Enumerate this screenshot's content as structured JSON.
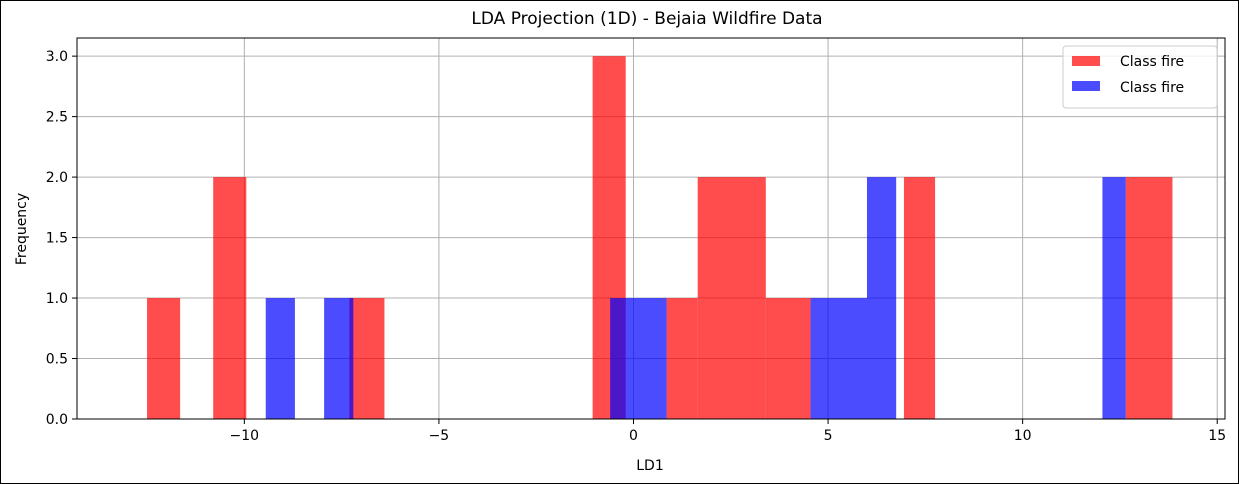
{
  "chart_data": {
    "type": "bar",
    "title": "LDA Projection (1D) - Bejaia Wildfire Data",
    "xlabel": "LD1",
    "ylabel": "Frequency",
    "xlim": [
      -14.3,
      15.2
    ],
    "ylim": [
      0,
      3.15
    ],
    "xticks": [
      -10,
      -5,
      0,
      5,
      10,
      15
    ],
    "xtick_labels": [
      "−10",
      "−5",
      "0",
      "5",
      "10",
      "15"
    ],
    "yticks": [
      0,
      0.5,
      1,
      1.5,
      2,
      2.5,
      3
    ],
    "ytick_labels": [
      "0.0",
      "0.5",
      "1.0",
      "1.5",
      "2.0",
      "2.5",
      "3.0"
    ],
    "grid": true,
    "legend_position": "upper-right",
    "series": [
      {
        "name": "Class fire",
        "color": "#ff0000",
        "alpha": 0.7,
        "bins": [
          {
            "x0": -12.5,
            "x1": -11.65,
            "count": 1
          },
          {
            "x0": -10.8,
            "x1": -9.95,
            "count": 2
          },
          {
            "x0": -7.3,
            "x1": -6.4,
            "count": 1
          },
          {
            "x0": -1.05,
            "x1": -0.2,
            "count": 3
          },
          {
            "x0": 0.85,
            "x1": 1.65,
            "count": 1
          },
          {
            "x0": 1.65,
            "x1": 3.4,
            "count": 2
          },
          {
            "x0": 3.4,
            "x1": 4.55,
            "count": 1
          },
          {
            "x0": 6.95,
            "x1": 7.75,
            "count": 2
          },
          {
            "x0": 12.65,
            "x1": 13.85,
            "count": 2
          }
        ]
      },
      {
        "name": "Class fire",
        "color": "#0000ff",
        "alpha": 0.7,
        "bins": [
          {
            "x0": -9.45,
            "x1": -8.7,
            "count": 1
          },
          {
            "x0": -7.95,
            "x1": -7.2,
            "count": 1
          },
          {
            "x0": -0.6,
            "x1": 0.85,
            "count": 1
          },
          {
            "x0": 4.55,
            "x1": 6.0,
            "count": 1
          },
          {
            "x0": 6.0,
            "x1": 6.75,
            "count": 2
          },
          {
            "x0": 12.05,
            "x1": 12.65,
            "count": 2
          }
        ]
      }
    ]
  }
}
